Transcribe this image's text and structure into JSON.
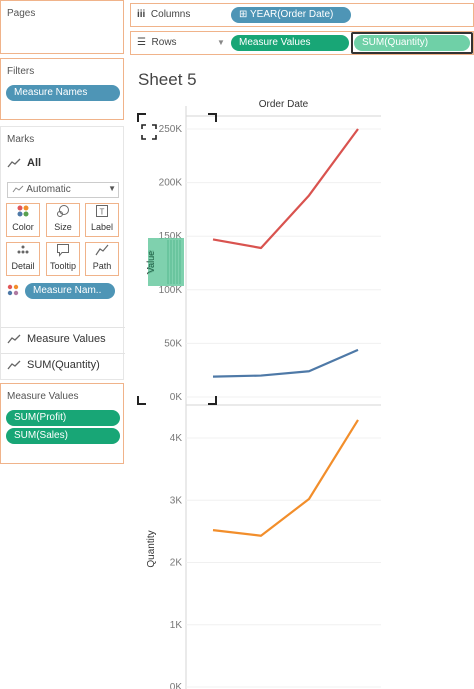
{
  "pages": {
    "title": "Pages"
  },
  "filters": {
    "title": "Filters",
    "pills": [
      "Measure Names"
    ]
  },
  "marks": {
    "title": "Marks",
    "all_label": "All",
    "mark_type": "Automatic",
    "buttons": [
      "Color",
      "Size",
      "Label",
      "Detail",
      "Tooltip",
      "Path"
    ],
    "color_pill": "Measure Nam..",
    "sections": [
      "Measure Values",
      "SUM(Quantity)"
    ]
  },
  "measure_values_card": {
    "title": "Measure Values",
    "pills": [
      "SUM(Profit)",
      "SUM(Sales)"
    ]
  },
  "columns_shelf": {
    "label": "Columns",
    "pill": "YEAR(Order Date)"
  },
  "rows_shelf": {
    "label": "Rows",
    "pills": [
      "Measure Values",
      "SUM(Quantity)"
    ]
  },
  "sheet": {
    "title": "Sheet 5",
    "column_header": "Order Date",
    "drop_hint": "Value"
  },
  "colors": {
    "sales": "#d9534f",
    "profit": "#4e79a7",
    "quantity": "#f28e2b",
    "pill_blue": "#4e95b6",
    "pill_green": "#18a676",
    "shelf_border": "#f0b38a"
  },
  "chart_data": [
    {
      "type": "line",
      "title": "",
      "xlabel": "",
      "ylabel": "Value",
      "x": [
        1,
        2,
        3,
        4
      ],
      "ylim": [
        0,
        260000
      ],
      "yticks": [
        "0K",
        "50K",
        "100K",
        "150K",
        "200K",
        "250K"
      ],
      "series": [
        {
          "name": "SUM(Sales)",
          "values": [
            147000,
            139000,
            188000,
            250000
          ]
        },
        {
          "name": "SUM(Profit)",
          "values": [
            19000,
            20000,
            24000,
            44000
          ]
        }
      ]
    },
    {
      "type": "line",
      "title": "",
      "xlabel": "",
      "ylabel": "Quantity",
      "x": [
        1,
        2,
        3,
        4
      ],
      "ylim": [
        0,
        4300
      ],
      "yticks": [
        "0K",
        "1K",
        "2K",
        "3K",
        "4K"
      ],
      "series": [
        {
          "name": "SUM(Quantity)",
          "values": [
            2520,
            2430,
            3020,
            4290
          ]
        }
      ]
    }
  ]
}
